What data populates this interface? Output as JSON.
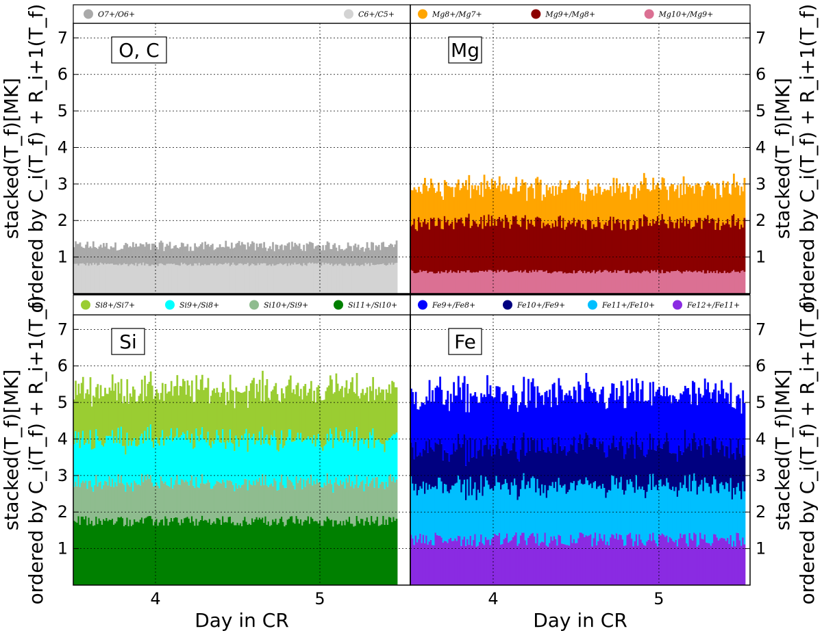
{
  "chart_data": [
    {
      "type": "bar",
      "stacked": true,
      "panel_label": "O, C",
      "xlabel": "",
      "ylabel_left": [
        "stacked(T_f)[MK]",
        "ordered by C_i(T_f) + R_i+1(T_f)"
      ],
      "ylabel_right": [],
      "x_range": [
        3.5,
        5.55
      ],
      "x_ticks": [
        "",
        ""
      ],
      "y_range": [
        0,
        7.4
      ],
      "y_ticks": [
        "1",
        "2",
        "3",
        "4",
        "5",
        "6",
        "7"
      ],
      "grid": true,
      "legend_placement": "top",
      "series": [
        {
          "name": "C6+/C5+",
          "color": "#d3d3d3",
          "mean": 0.8,
          "noise": 0.05
        },
        {
          "name": "O7+/O6+",
          "color": "#a9a9a9",
          "mean": 0.5,
          "noise": 0.12
        }
      ]
    },
    {
      "type": "bar",
      "stacked": true,
      "panel_label": "Mg",
      "xlabel": "",
      "ylabel_left": [],
      "ylabel_right": [
        "stacked(T_f)[MK]",
        "ordered by C_i(T_f) + R_i+1(T_f)"
      ],
      "x_range": [
        3.5,
        5.55
      ],
      "x_ticks": [
        "",
        ""
      ],
      "y_range": [
        0,
        7.4
      ],
      "y_ticks": [
        "1",
        "2",
        "3",
        "4",
        "5",
        "6",
        "7"
      ],
      "grid": true,
      "legend_placement": "top",
      "series": [
        {
          "name": "Mg10+/Mg9+",
          "color": "#db7093",
          "mean": 0.6,
          "noise": 0.05
        },
        {
          "name": "Mg9+/Mg8+",
          "color": "#8b0000",
          "mean": 1.35,
          "noise": 0.2
        },
        {
          "name": "Mg8+/Mg7+",
          "color": "#ffa500",
          "mean": 0.95,
          "noise": 0.2
        }
      ]
    },
    {
      "type": "bar",
      "stacked": true,
      "panel_label": "Si",
      "xlabel": "Day in CR",
      "ylabel_left": [
        "stacked(T_f)[MK]",
        "ordered by C_i(T_f) + R_i+1(T_f)"
      ],
      "ylabel_right": [],
      "x_range": [
        3.5,
        5.55
      ],
      "x_ticks": [
        "4",
        "5"
      ],
      "y_range": [
        0,
        7.4
      ],
      "y_ticks": [
        "1",
        "2",
        "3",
        "4",
        "5",
        "6",
        "7"
      ],
      "grid": true,
      "legend_placement": "top",
      "series": [
        {
          "name": "Si11+/Si10+",
          "color": "#008000",
          "mean": 1.75,
          "noise": 0.15
        },
        {
          "name": "Si10+/Si9+",
          "color": "#8fbc8f",
          "mean": 1.05,
          "noise": 0.15
        },
        {
          "name": "Si9+/Si8+",
          "color": "#00ffff",
          "mean": 1.2,
          "noise": 0.2
        },
        {
          "name": "Si8+/Si7+",
          "color": "#9acd32",
          "mean": 1.35,
          "noise": 0.2
        }
      ]
    },
    {
      "type": "bar",
      "stacked": true,
      "panel_label": "Fe",
      "xlabel": "Day in CR",
      "ylabel_left": [],
      "ylabel_right": [
        "stacked(T_f)[MK]",
        "ordered by C_i(T_f) + R_i+1(T_f)"
      ],
      "x_range": [
        3.5,
        5.55
      ],
      "x_ticks": [
        "4",
        "5"
      ],
      "y_range": [
        0,
        7.4
      ],
      "y_ticks": [
        "1",
        "2",
        "3",
        "4",
        "5",
        "6",
        "7"
      ],
      "grid": true,
      "legend_placement": "top",
      "series": [
        {
          "name": "Fe12+/Fe11+",
          "color": "#8a2be2",
          "mean": 1.25,
          "noise": 0.2
        },
        {
          "name": "Fe11+/Fe10+",
          "color": "#00bfff",
          "mean": 1.45,
          "noise": 0.2
        },
        {
          "name": "Fe10+/Fe9+",
          "color": "#000080",
          "mean": 1.05,
          "noise": 0.2
        },
        {
          "name": "Fe9+/Fe8+",
          "color": "#0000ff",
          "mean": 1.45,
          "noise": 0.25
        }
      ]
    }
  ]
}
